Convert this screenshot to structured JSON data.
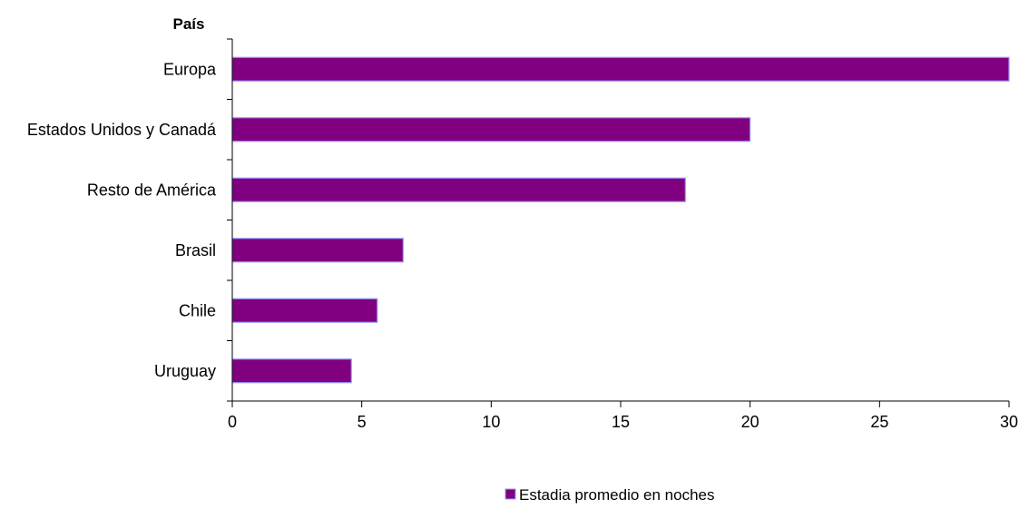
{
  "chart_data": {
    "type": "bar",
    "orientation": "horizontal",
    "title": "",
    "category_axis_title": "País",
    "xlabel": "",
    "categories": [
      "Europa",
      "Estados Unidos y Canadá",
      "Resto de América",
      "Brasil",
      "Chile",
      "Uruguay"
    ],
    "series": [
      {
        "name": "Estadia promedio en noches",
        "values": [
          30.2,
          20.0,
          17.5,
          6.6,
          5.6,
          4.6
        ],
        "color": "#800080",
        "edge_color": "#9999ff"
      }
    ],
    "xlim": [
      0,
      30
    ],
    "xticks": [
      0,
      5,
      10,
      15,
      20,
      25,
      30
    ],
    "grid": false,
    "legend_position": "bottom"
  }
}
